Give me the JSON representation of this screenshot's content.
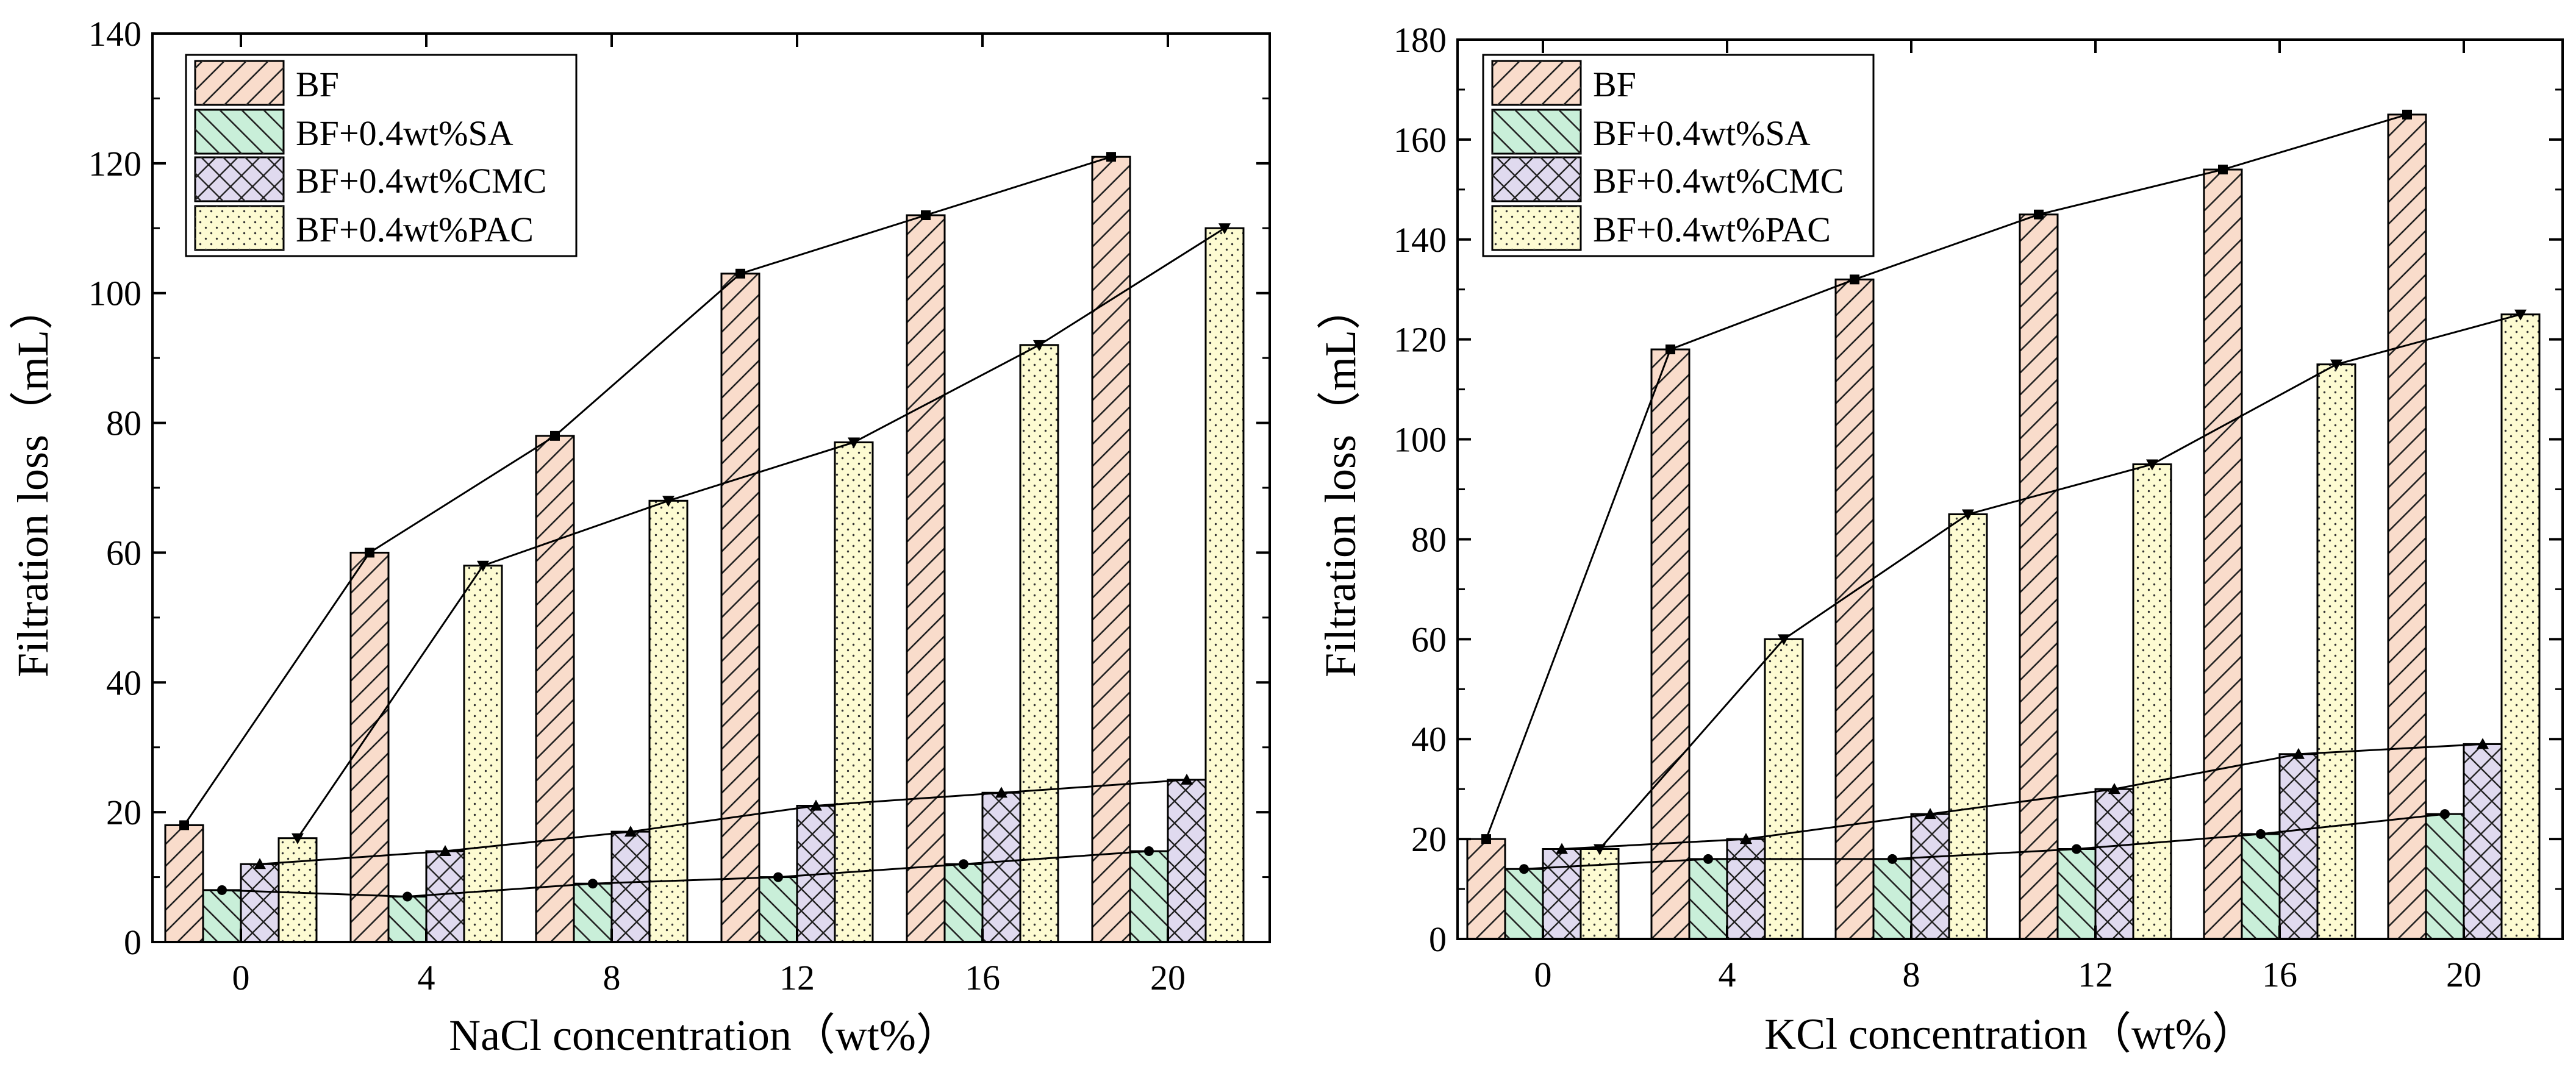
{
  "chart_data": [
    {
      "type": "bar",
      "xlabel": "NaCl concentration（wt%）",
      "ylabel": "Filtration loss（mL）",
      "ylim": [
        0,
        140
      ],
      "yticks": [
        0,
        20,
        40,
        60,
        80,
        100,
        120,
        140
      ],
      "categories": [
        "0",
        "4",
        "8",
        "12",
        "16",
        "20"
      ],
      "legend_position": "top-left",
      "series": [
        {
          "name": "BF",
          "pattern": "forward-hatch",
          "fill": "#F9DCCB",
          "values": [
            18,
            60,
            78,
            103,
            112,
            121
          ]
        },
        {
          "name": "BF+0.4wt%SA",
          "pattern": "back-hatch",
          "fill": "#C9EFD9",
          "values": [
            8,
            7,
            9,
            10,
            12,
            14
          ]
        },
        {
          "name": "BF+0.4wt%CMC",
          "pattern": "cross-hatch",
          "fill": "#E0DAEF",
          "values": [
            12,
            14,
            17,
            21,
            23,
            25
          ]
        },
        {
          "name": "BF+0.4wt%PAC",
          "pattern": "dots",
          "fill": "#FDFBD2",
          "values": [
            16,
            58,
            68,
            77,
            92,
            110
          ]
        }
      ]
    },
    {
      "type": "bar",
      "xlabel": "KCl concentration（wt%）",
      "ylabel": "Filtration loss（mL）",
      "ylim": [
        0,
        180
      ],
      "yticks": [
        0,
        20,
        40,
        60,
        80,
        100,
        120,
        140,
        160,
        180
      ],
      "categories": [
        "0",
        "4",
        "8",
        "12",
        "16",
        "20"
      ],
      "legend_position": "top-left",
      "series": [
        {
          "name": "BF",
          "pattern": "forward-hatch",
          "fill": "#F9DCCB",
          "values": [
            20,
            118,
            132,
            145,
            154,
            165
          ]
        },
        {
          "name": "BF+0.4wt%SA",
          "pattern": "back-hatch",
          "fill": "#C9EFD9",
          "values": [
            14,
            16,
            16,
            18,
            21,
            25
          ]
        },
        {
          "name": "BF+0.4wt%CMC",
          "pattern": "cross-hatch",
          "fill": "#E0DAEF",
          "values": [
            18,
            20,
            25,
            30,
            37,
            39
          ]
        },
        {
          "name": "BF+0.4wt%PAC",
          "pattern": "dots",
          "fill": "#FDFBD2",
          "values": [
            18,
            60,
            85,
            95,
            115,
            125
          ]
        }
      ]
    }
  ]
}
